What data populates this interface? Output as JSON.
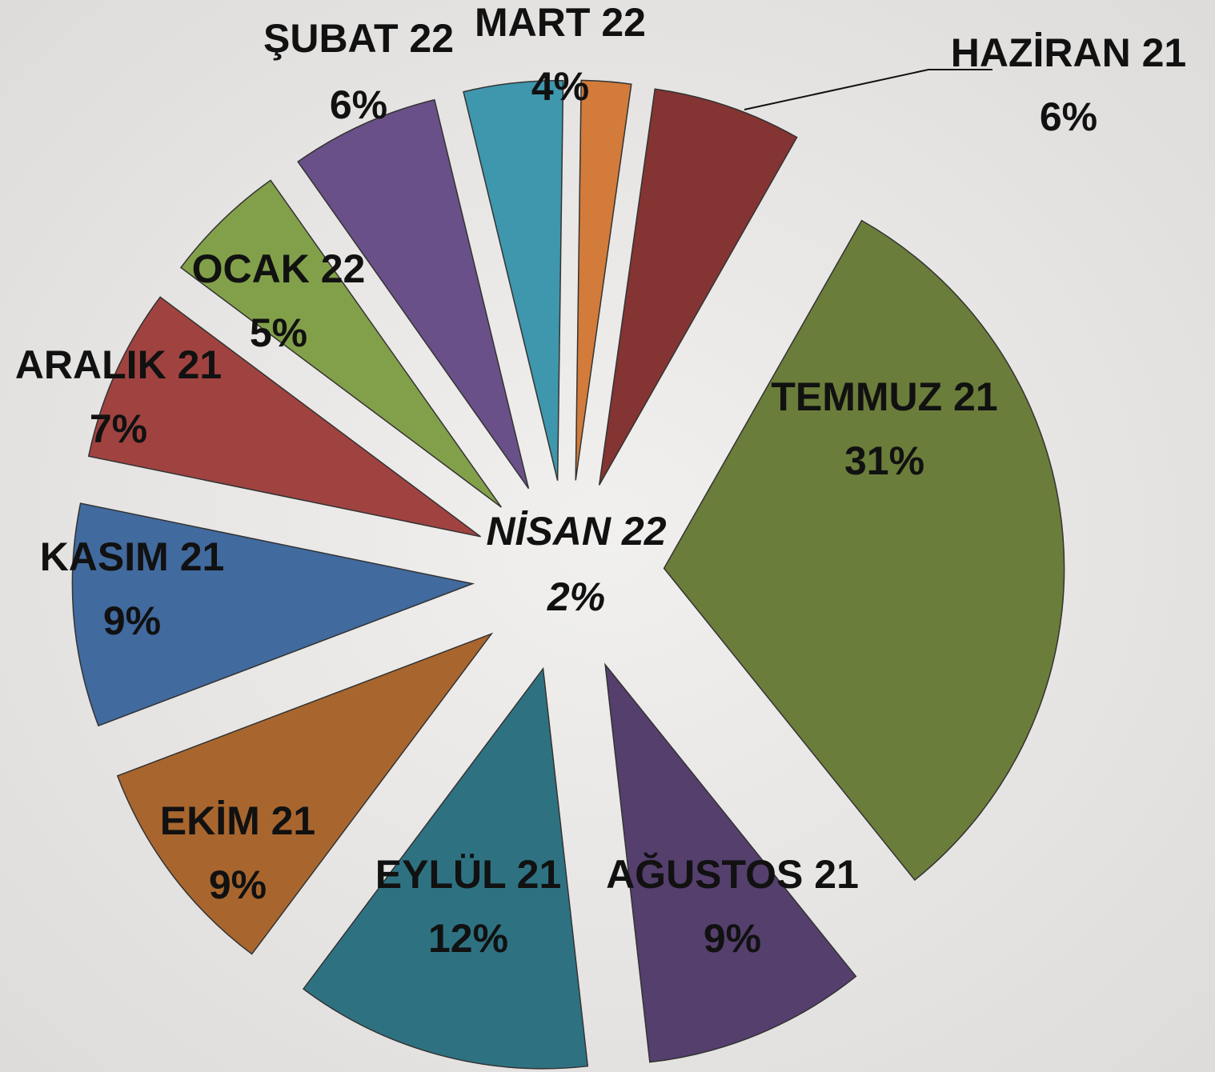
{
  "chart_data": {
    "type": "pie",
    "categories": [
      "HAZİRAN 21",
      "TEMMUZ 21",
      "AĞUSTOS 21",
      "EYLÜL 21",
      "EKİM 21",
      "KASIM 21",
      "ARALIK 21",
      "OCAK 22",
      "ŞUBAT 22",
      "MART 22",
      "NİSAN 22"
    ],
    "values": [
      6,
      31,
      9,
      12,
      9,
      9,
      7,
      5,
      6,
      4,
      2
    ],
    "value_labels": [
      "6%",
      "31%",
      "9%",
      "12%",
      "9%",
      "9%",
      "7%",
      "5%",
      "6%",
      "4%",
      "2%"
    ],
    "colors": [
      "#843432",
      "#6b7d3a",
      "#553f6d",
      "#2e7282",
      "#a8662e",
      "#416a9e",
      "#a04340",
      "#82a04a",
      "#6a5088",
      "#3e97ad",
      "#d27b3a"
    ]
  }
}
